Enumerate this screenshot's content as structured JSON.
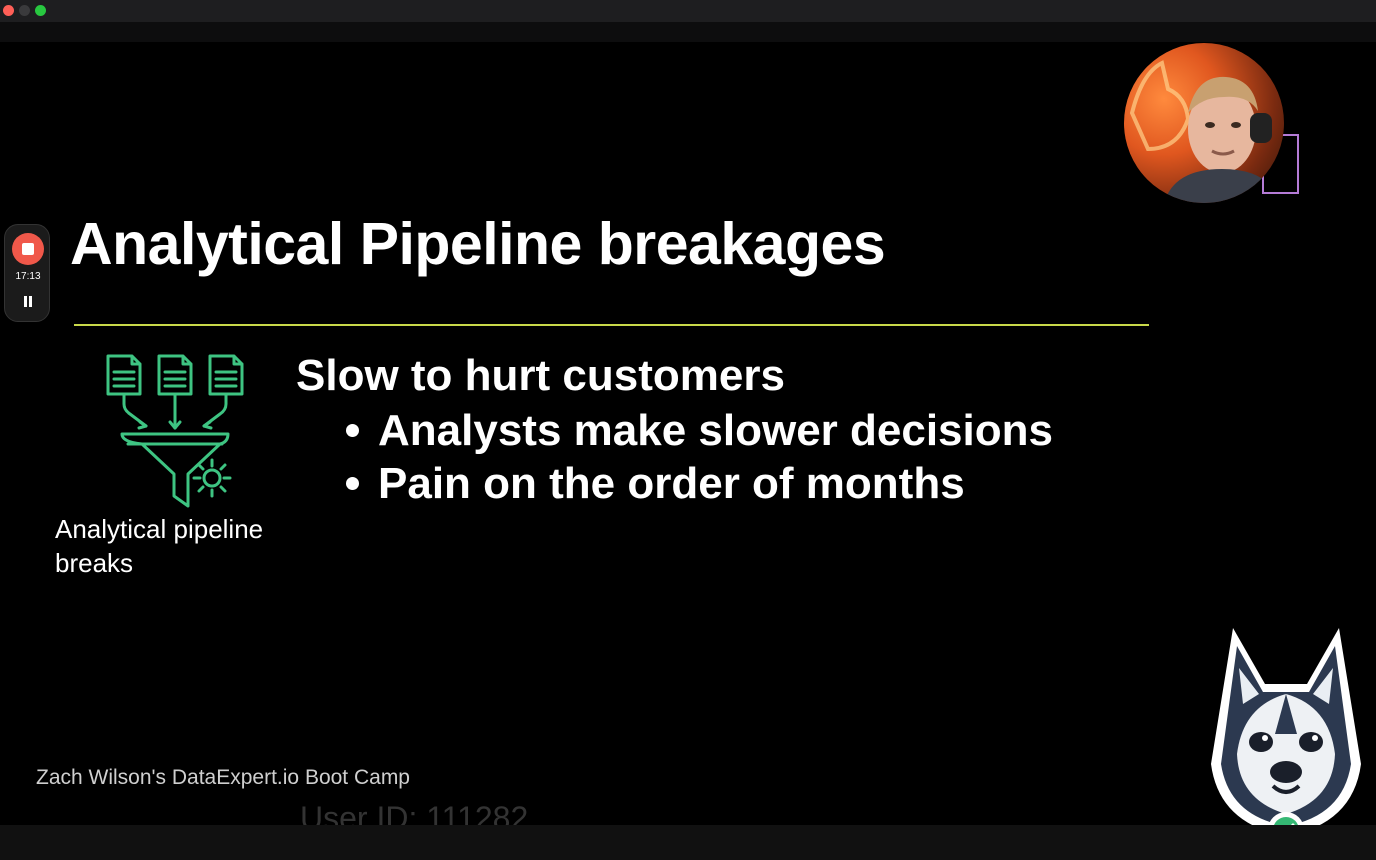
{
  "slide": {
    "title": "Analytical Pipeline breakages",
    "icon_caption": "Analytical pipeline breaks",
    "heading": "Slow to hurt customers",
    "bullets": [
      "Analysts make slower decisions",
      "Pain on the order of months"
    ],
    "footer": "Zach Wilson's DataExpert.io Boot Camp",
    "watermark": "User ID: 111282"
  },
  "recorder": {
    "elapsed": "17:13"
  },
  "colors": {
    "accent_line": "#c9d94a",
    "icon_green": "#3ec482",
    "record_red": "#f0584a"
  },
  "icons": [
    "funnel-documents-icon",
    "stop-icon",
    "pause-icon",
    "husky-mascot-icon",
    "check-badge-icon"
  ]
}
